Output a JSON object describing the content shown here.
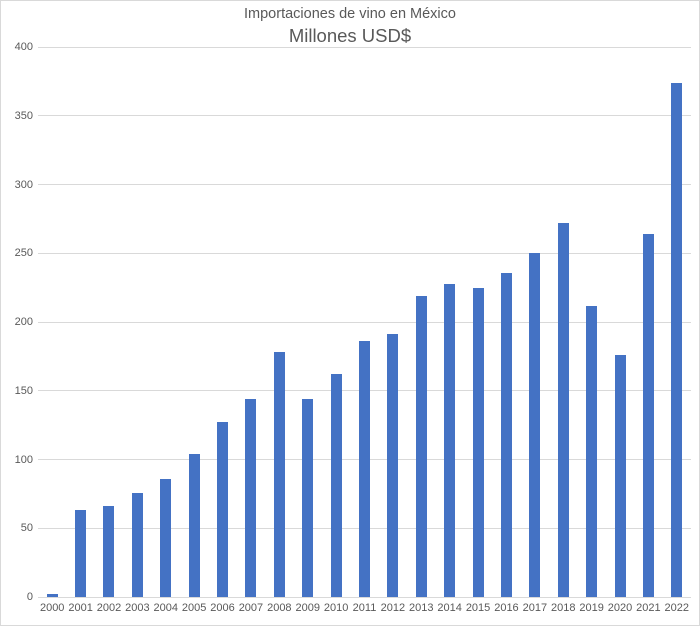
{
  "chart_data": {
    "type": "bar",
    "title": "Importaciones de vino en México",
    "subtitle": "Millones USD$",
    "categories": [
      "2000",
      "2001",
      "2002",
      "2003",
      "2004",
      "2005",
      "2006",
      "2007",
      "2008",
      "2009",
      "2010",
      "2011",
      "2012",
      "2013",
      "2014",
      "2015",
      "2016",
      "2017",
      "2018",
      "2019",
      "2020",
      "2021",
      "2022"
    ],
    "values": [
      2,
      63,
      66,
      76,
      86,
      104,
      127,
      144,
      178,
      144,
      162,
      186,
      191,
      219,
      228,
      225,
      236,
      250,
      272,
      212,
      176,
      264,
      374
    ],
    "xlabel": "",
    "ylabel": "",
    "ylim": [
      0,
      400
    ],
    "yticks": [
      0,
      50,
      100,
      150,
      200,
      250,
      300,
      350,
      400
    ],
    "grid": "horizontal",
    "legend_position": "none"
  },
  "colors": {
    "bar": "#4472c4",
    "gridline": "#d9d9d9",
    "axis_text": "#595959",
    "title_text": "#595959",
    "frame_border": "#d9d9d9",
    "background": "#ffffff"
  }
}
